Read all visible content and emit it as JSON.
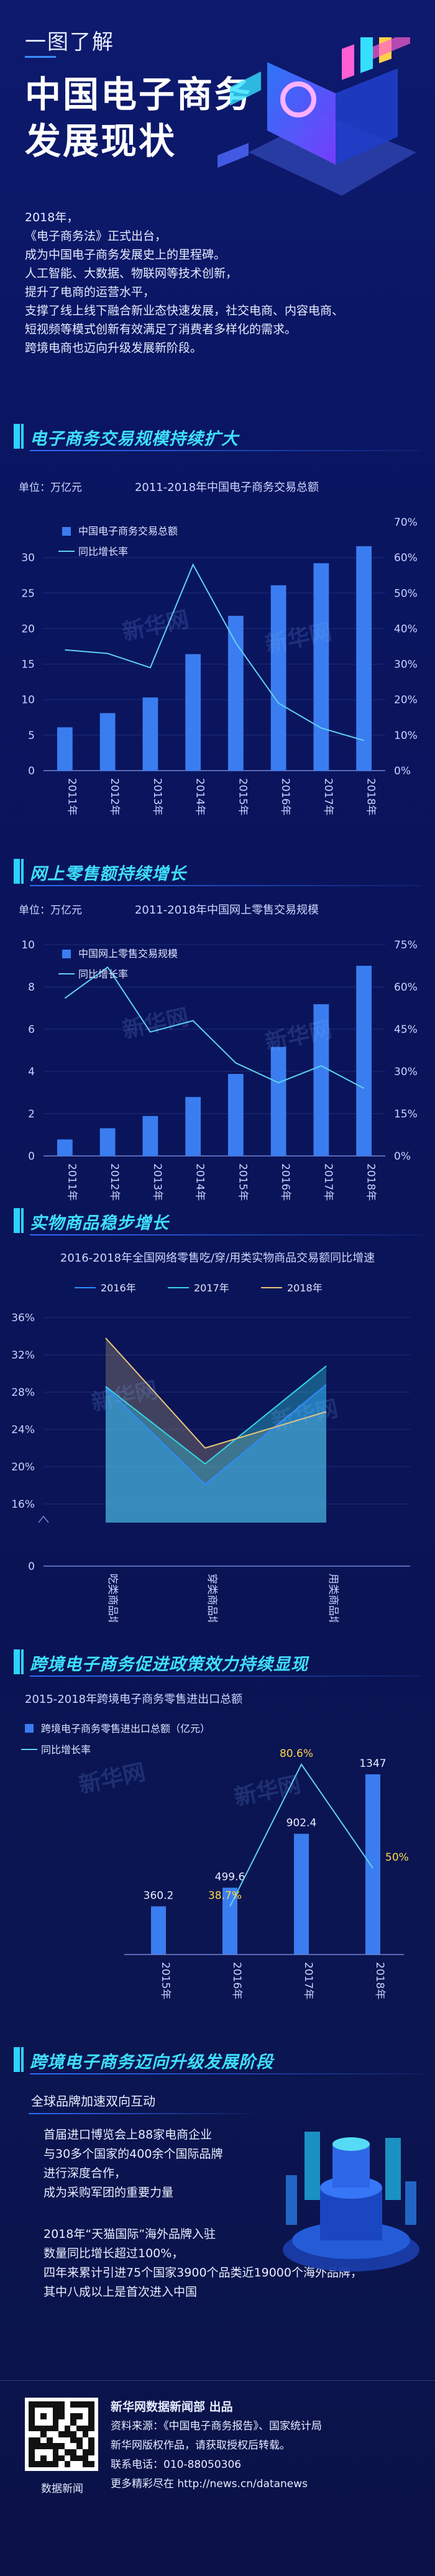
{
  "header": {
    "kicker": "一图了解",
    "title_line1": "中国电子商务",
    "title_line2": "发展现状"
  },
  "intro": [
    "2018年，",
    "《电子商务法》正式出台，",
    "成为中国电子商务发展史上的里程碑。",
    "人工智能、大数据、物联网等技术创新，",
    "提升了电商的运营水平，",
    "支撑了线上线下融合新业态快速发展，社交电商、内容电商、",
    "短视频等模式创新有效满足了消费者多样化的需求。",
    "跨境电商也迈向升级发展新阶段。"
  ],
  "sections": {
    "s1": "电子商务交易规模持续扩大",
    "s2": "网上零售额持续增长",
    "s3": "实物商品稳步增长",
    "s4": "跨境电子商务促进政策效力持续显现",
    "s5": "跨境电子商务迈向升级发展阶段"
  },
  "watermark": "新华网",
  "chart_data": [
    {
      "type": "bar",
      "title": "2011-2018年中国电子商务交易总额",
      "unit_label": "单位：万亿元",
      "categories": [
        "2011年",
        "2012年",
        "2013年",
        "2014年",
        "2015年",
        "2016年",
        "2017年",
        "2018年"
      ],
      "series": [
        {
          "name": "中国电子商务交易总额",
          "type": "bar",
          "axis": "left",
          "values": [
            6.1,
            8.1,
            10.3,
            16.4,
            21.8,
            26.1,
            29.2,
            31.6
          ]
        },
        {
          "name": "同比增长率",
          "type": "line",
          "axis": "right",
          "values": [
            34,
            33,
            29,
            58,
            36,
            19,
            12,
            8.5
          ]
        }
      ],
      "yleft_ticks": [
        "0",
        "5",
        "10",
        "15",
        "20",
        "25",
        "30"
      ],
      "yleft_lim": [
        0,
        35
      ],
      "yright_ticks": [
        "0%",
        "10%",
        "20%",
        "30%",
        "40%",
        "50%",
        "60%",
        "70%"
      ],
      "yright_lim": [
        0,
        70
      ]
    },
    {
      "type": "bar",
      "title": "2011-2018年中国网上零售交易规模",
      "unit_label": "单位：万亿元",
      "categories": [
        "2011年",
        "2012年",
        "2013年",
        "2014年",
        "2015年",
        "2016年",
        "2017年",
        "2018年"
      ],
      "series": [
        {
          "name": "中国网上零售交易规模",
          "type": "bar",
          "axis": "left",
          "values": [
            0.78,
            1.31,
            1.89,
            2.79,
            3.88,
            5.16,
            7.18,
            9.0
          ]
        },
        {
          "name": "同比增长率",
          "type": "line",
          "axis": "right",
          "values": [
            56,
            67,
            44,
            48,
            33,
            26,
            32,
            24
          ]
        }
      ],
      "yleft_ticks": [
        "0",
        "2",
        "4",
        "6",
        "8",
        "10"
      ],
      "yleft_lim": [
        0,
        10
      ],
      "yright_ticks": [
        "0%",
        "15%",
        "30%",
        "45%",
        "60%",
        "75%"
      ],
      "yright_lim": [
        0,
        75
      ]
    },
    {
      "type": "area",
      "title": "2016-2018年全国网络零售吃/穿/用类实物商品交易额同比增速",
      "categories": [
        "吃类商品增速",
        "穿类商品增速",
        "用类商品增速"
      ],
      "series": [
        {
          "name": "2016年",
          "color": "#2e8cff",
          "values": [
            28.5,
            18.1,
            28.8
          ]
        },
        {
          "name": "2017年",
          "color": "#34d7e6",
          "values": [
            28.6,
            20.3,
            30.8
          ]
        },
        {
          "name": "2018年",
          "color": "#e8c67a",
          "values": [
            33.8,
            22.0,
            25.9
          ]
        }
      ],
      "y_ticks": [
        "0",
        "16%",
        "20%",
        "24%",
        "28%",
        "32%",
        "36%"
      ]
    },
    {
      "type": "bar",
      "title": "2015-2018年跨境电子商务零售进出口总额",
      "categories": [
        "2015年",
        "2016年",
        "2017年",
        "2018年"
      ],
      "series": [
        {
          "name": "跨境电子商务零售进出口总额（亿元）",
          "type": "bar",
          "values": [
            360.2,
            499.6,
            902.4,
            1347
          ]
        },
        {
          "name": "同比增长率",
          "type": "line",
          "values": [
            null,
            38.7,
            80.6,
            50
          ]
        }
      ],
      "value_labels": [
        "360.2",
        "499.6",
        "902.4",
        "1347"
      ],
      "rate_labels": [
        "",
        "38.7%",
        "80.6%",
        "50%"
      ]
    }
  ],
  "s5": {
    "subtitle": "全球品牌加速双向互动",
    "para1": [
      "首届进口博览会上88家电商企业",
      "与30多个国家的400余个国际品牌",
      "进行深度合作，",
      "成为采购军团的重要力量"
    ],
    "para2": [
      "2018年“天猫国际”海外品牌入驻",
      "数量同比增长超过100%，",
      "四年来累计引进75个国家3900个品类近19000个海外品牌，",
      "其中八成以上是首次进入中国"
    ]
  },
  "footer": {
    "qr_label": "数据新闻",
    "publisher": "新华网数据新闻部 出品",
    "source": "资料来源：《中国电子商务报告》、国家统计局",
    "copyright": "新华网版权作品，请获取授权后转载。",
    "phone": "联系电话：010-88050306",
    "more": "更多精彩尽在 http://news.cn/datanews"
  }
}
